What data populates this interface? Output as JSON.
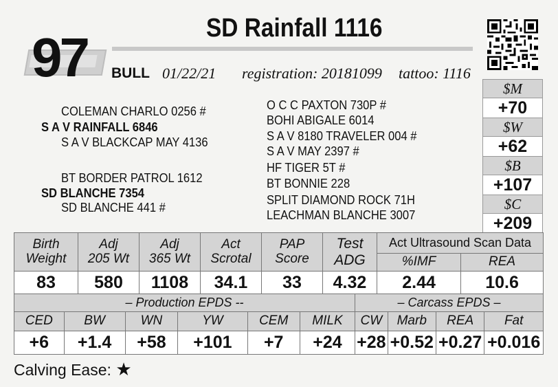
{
  "lot_number": "97",
  "animal_name": "SD Rainfall 1116",
  "sex": "BULL",
  "birth_date": "01/22/21",
  "registration": "registration:  20181099",
  "tattoo": "tattoo: 1116",
  "pedigree": {
    "sire_sire": "COLEMAN CHARLO 0256 #",
    "sire": "S A V RAINFALL 6846",
    "sire_dam": "S A V BLACKCAP MAY 4136",
    "dam_sire": "BT BORDER PATROL 1612",
    "dam": "SD BLANCHE 7354",
    "dam_dam": "SD BLANCHE 441 #",
    "far_right": [
      "O C C PAXTON 730P #",
      "BOHI ABIGALE 6014",
      "S A V 8180 TRAVELER 004 #",
      "S A V MAY 2397 #",
      "HF TIGER 5T #",
      "BT BONNIE 228",
      "SPLIT DIAMOND ROCK 71H",
      "LEACHMAN BLANCHE 3007"
    ]
  },
  "indexes": [
    {
      "label": "$M",
      "value": "+70"
    },
    {
      "label": "$W",
      "value": "+62"
    },
    {
      "label": "$B",
      "value": "+107"
    },
    {
      "label": "$C",
      "value": "+209"
    }
  ],
  "performance": {
    "headers": [
      "Birth\nWeight",
      "Adj\n205 Wt",
      "Adj\n365 Wt",
      "Act\nScrotal",
      "PAP\nScore"
    ],
    "values": [
      "83",
      "580",
      "1108",
      "34.1",
      "33"
    ],
    "test_adg_header": "Test\nADG",
    "test_adg_value": "4.32",
    "ultrasound_title": "Act Ultrasound Scan Data",
    "ultrasound_headers": [
      "%IMF",
      "REA"
    ],
    "ultrasound_values": [
      "2.44",
      "10.6"
    ]
  },
  "production_epds": {
    "title": "– Production EPDS --",
    "headers": [
      "CED",
      "BW",
      "WN",
      "YW",
      "CEM",
      "MILK"
    ],
    "values": [
      "+6",
      "+1.4",
      "+58",
      "+101",
      "+7",
      "+24"
    ]
  },
  "carcass_epds": {
    "title": "– Carcass EPDS –",
    "headers": [
      "CW",
      "Marb",
      "REA",
      "Fat"
    ],
    "values": [
      "+28",
      "+0.52",
      "+0.27",
      "+0.016"
    ]
  },
  "calving_ease_label": "Calving Ease:",
  "calving_ease_stars": "★",
  "icons": [
    "qr-code-icon",
    "star-icon"
  ]
}
